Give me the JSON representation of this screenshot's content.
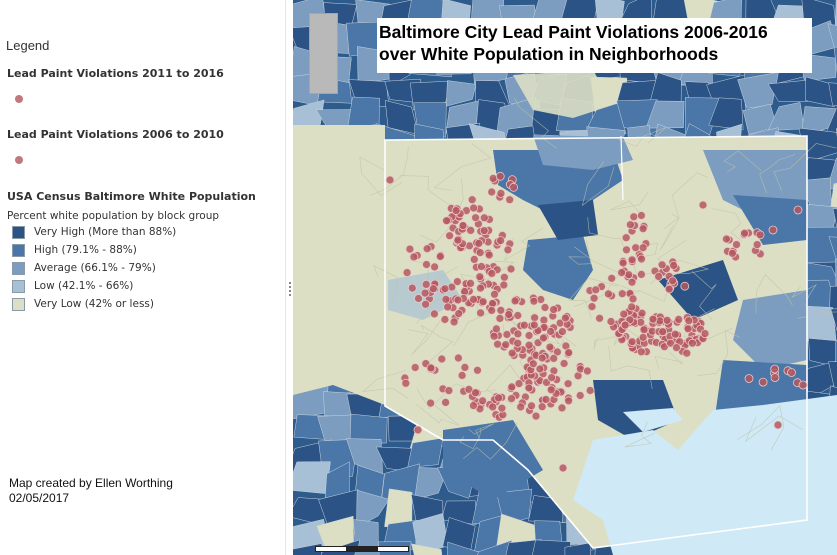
{
  "legend": {
    "title": "Legend",
    "layers": [
      {
        "title": "Lead Paint Violations 2011 to 2016",
        "symbol_color": "#c07a7e"
      },
      {
        "title": "Lead Paint Violations 2006 to 2010",
        "symbol_color": "#c07a7e"
      }
    ],
    "census": {
      "title": "USA Census Baltimore White Population",
      "subtitle": "Percent white population by block group",
      "classes": [
        {
          "label": "Very High (More than 88%)",
          "color": "#2b5385"
        },
        {
          "label": "High (79.1% - 88%)",
          "color": "#4a76a8"
        },
        {
          "label": "Average (66.1% - 79%)",
          "color": "#7c9dc0"
        },
        {
          "label": "Low (42.1% - 66%)",
          "color": "#a7c0d6"
        },
        {
          "label": "Very Low (42% or less)",
          "color": "#dcdfc4"
        }
      ]
    }
  },
  "credit": {
    "line1": "Map created by Ellen Worthing",
    "line2": "02/05/2017"
  },
  "map": {
    "title_line1": "Baltimore City Lead Paint Violations 2006-2016",
    "title_line2": "over White Population in Neighborhoods",
    "water_color": "#cfe9f6",
    "violation_color": "#b5585f"
  }
}
